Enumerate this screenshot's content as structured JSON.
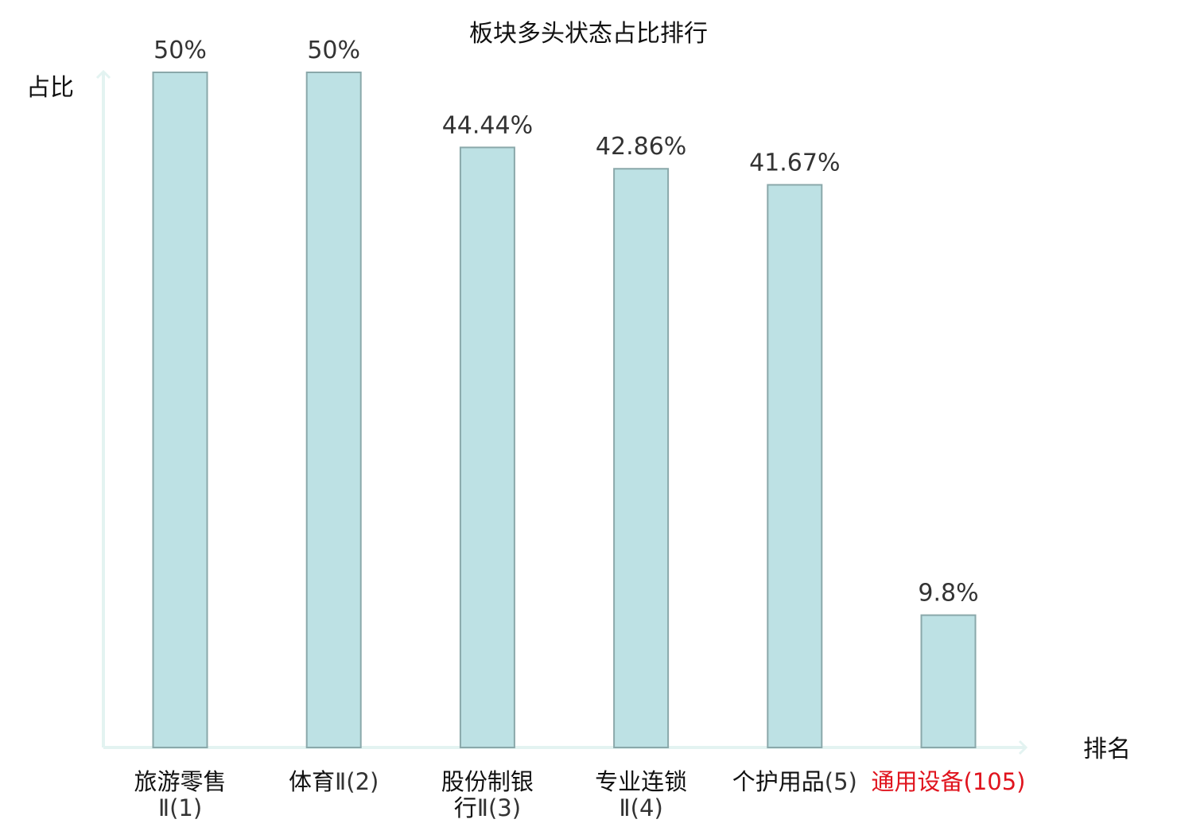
{
  "chart_data": {
    "type": "bar",
    "title": "板块多头状态占比排行",
    "ylabel": "占比",
    "xlabel": "排名",
    "ylim": [
      0,
      50
    ],
    "grid": false,
    "categories": [
      {
        "lines": [
          {
            "name": "旅游零售",
            "rank": ""
          },
          {
            "name": "",
            "rank": "Ⅱ(1)"
          }
        ],
        "highlight": false
      },
      {
        "lines": [
          {
            "name": "体育",
            "rank": "Ⅱ(2)"
          }
        ],
        "highlight": false
      },
      {
        "lines": [
          {
            "name": "股份制银",
            "rank": ""
          },
          {
            "name": "行",
            "rank": "Ⅱ(3)"
          }
        ],
        "highlight": false
      },
      {
        "lines": [
          {
            "name": "专业连锁",
            "rank": ""
          },
          {
            "name": "",
            "rank": "Ⅱ(4)"
          }
        ],
        "highlight": false
      },
      {
        "lines": [
          {
            "name": "个护用品",
            "rank": "(5)"
          }
        ],
        "highlight": false
      },
      {
        "lines": [
          {
            "name": "通用设备",
            "rank": "(105)"
          }
        ],
        "highlight": true
      }
    ],
    "values": [
      50,
      50,
      44.44,
      42.86,
      41.67,
      9.8
    ],
    "value_labels": [
      "50%",
      "50%",
      "44.44%",
      "42.86%",
      "41.67%",
      "9.8%"
    ]
  },
  "colors": {
    "bar_fill": "#bde1e4",
    "bar_stroke": "#8aa8aa",
    "axis": "#e3f3f1",
    "text": "#111111",
    "rank_text": "#333333",
    "highlight": "#e0141e"
  }
}
